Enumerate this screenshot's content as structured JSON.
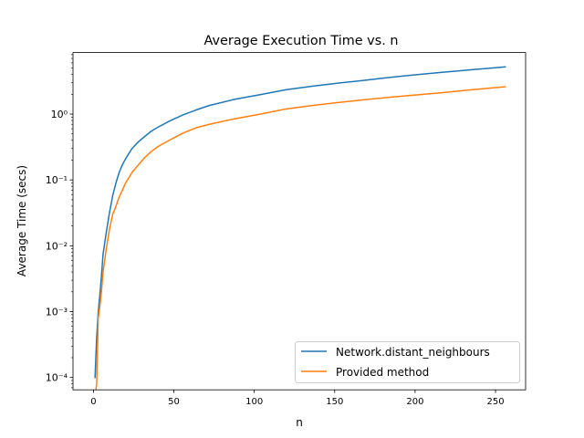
{
  "chart_data": {
    "type": "line",
    "title": "Average Execution Time vs. n",
    "xlabel": "n",
    "ylabel": "Average Time (secs)",
    "xlim": [
      -12.7,
      268.7
    ],
    "ylim": [
      6.5e-05,
      8.6
    ],
    "yscale": "log",
    "xticks": [
      0,
      50,
      100,
      150,
      200,
      250
    ],
    "xtick_labels": [
      "0",
      "50",
      "100",
      "150",
      "200",
      "250"
    ],
    "yticks": [
      0.0001,
      0.001,
      0.01,
      0.1,
      1
    ],
    "ytick_labels": [
      "10⁻⁴",
      "10⁻³",
      "10⁻²",
      "10⁻¹",
      "10⁰"
    ],
    "grid": false,
    "legend": "lower right",
    "series": [
      {
        "name": "Network.distant_neighbours",
        "color": "#1f77b4",
        "x": [
          1,
          2,
          3,
          4,
          5,
          6,
          8,
          10,
          12,
          14,
          16,
          18,
          20,
          24,
          28,
          32,
          36,
          40,
          48,
          56,
          64,
          72,
          88,
          104,
          120,
          136,
          152,
          168,
          184,
          200,
          216,
          232,
          256
        ],
        "y": [
          0.0001,
          0.0004,
          0.001,
          0.0018,
          0.0035,
          0.0075,
          0.016,
          0.032,
          0.058,
          0.09,
          0.13,
          0.17,
          0.21,
          0.3,
          0.38,
          0.46,
          0.55,
          0.63,
          0.8,
          0.98,
          1.16,
          1.35,
          1.68,
          1.98,
          2.35,
          2.65,
          2.95,
          3.25,
          3.6,
          3.95,
          4.3,
          4.65,
          5.2
        ]
      },
      {
        "name": "Provided method",
        "color": "#ff7f0e",
        "x": [
          1,
          2,
          3,
          4,
          5,
          6,
          8,
          10,
          12,
          14,
          16,
          18,
          20,
          24,
          28,
          32,
          36,
          40,
          48,
          56,
          64,
          72,
          88,
          104,
          120,
          136,
          152,
          168,
          184,
          200,
          216,
          232,
          256
        ],
        "y": [
          5e-05,
          8e-05,
          0.0008,
          0.0012,
          0.002,
          0.004,
          0.009,
          0.018,
          0.03,
          0.04,
          0.055,
          0.07,
          0.09,
          0.13,
          0.17,
          0.22,
          0.27,
          0.32,
          0.41,
          0.52,
          0.62,
          0.7,
          0.85,
          1.0,
          1.2,
          1.35,
          1.5,
          1.65,
          1.8,
          1.95,
          2.1,
          2.3,
          2.6
        ]
      }
    ]
  }
}
